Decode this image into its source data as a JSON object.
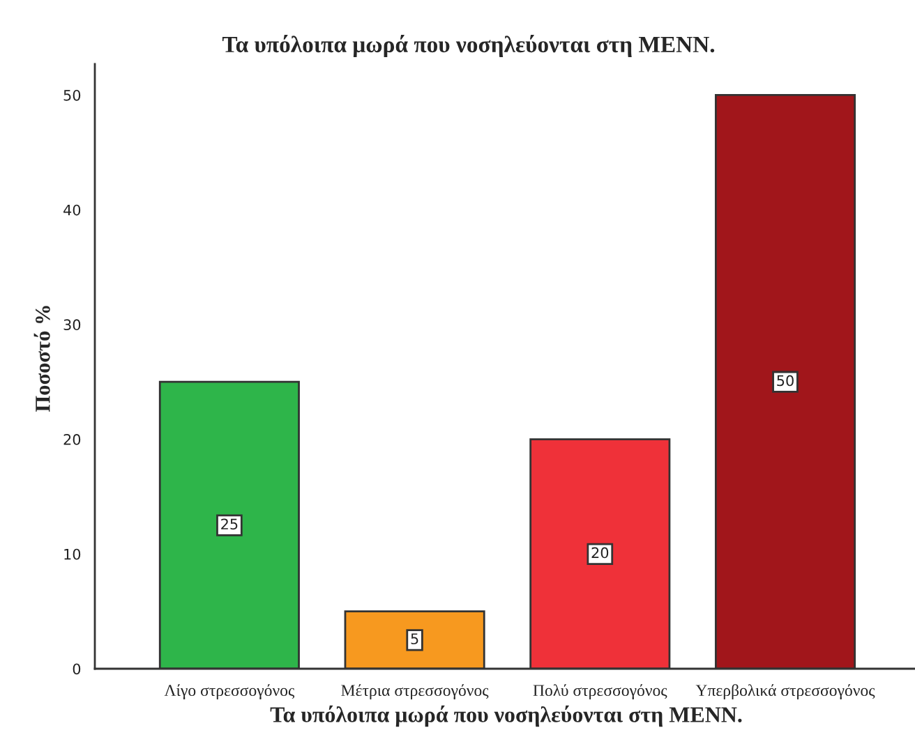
{
  "chart_data": {
    "type": "bar",
    "title": "Τα υπόλοιπα μωρά που νοσηλεύονται στη ΜΕΝΝ.",
    "xlabel": "Τα υπόλοιπα μωρά που νοσηλεύονται στη ΜΕΝΝ.",
    "ylabel": "Ποσοστό %",
    "categories": [
      "Λίγο στρεσσογόνος",
      "Μέτρια στρεσσογόνος",
      "Πολύ στρεσσογόνος",
      "Υπερβολικά στρεσσογόνος"
    ],
    "values": [
      25,
      5,
      20,
      50
    ],
    "colors": [
      "#2eb54a",
      "#f7991f",
      "#ef3139",
      "#a1161b"
    ],
    "ylim": [
      0,
      52.7
    ],
    "yticks": [
      0,
      10,
      20,
      30,
      40,
      50
    ],
    "grid": false,
    "legend": false,
    "data_labels": true
  }
}
